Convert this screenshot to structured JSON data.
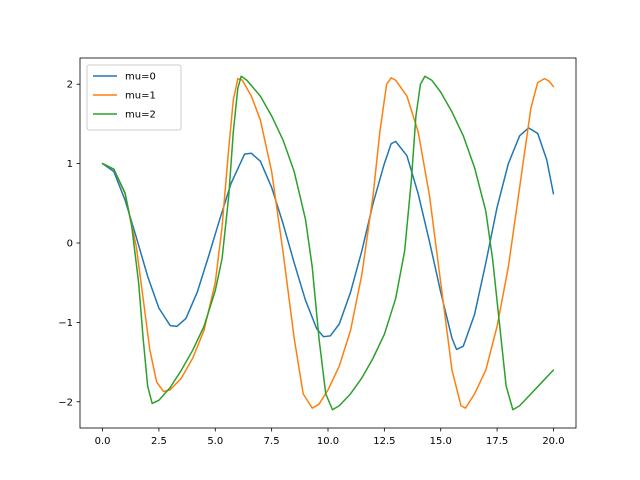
{
  "chart_data": {
    "type": "line",
    "title": "",
    "xlabel": "",
    "ylabel": "",
    "xlim": [
      -1.0,
      21.0
    ],
    "ylim": [
      -2.33,
      2.33
    ],
    "grid": false,
    "legend_placement": "top-left",
    "x_ticks": [
      0.0,
      2.5,
      5.0,
      7.5,
      10.0,
      12.5,
      15.0,
      17.5,
      20.0
    ],
    "x_tick_labels": [
      "0.0",
      "2.5",
      "5.0",
      "7.5",
      "10.0",
      "12.5",
      "15.0",
      "17.5",
      "20.0"
    ],
    "y_ticks": [
      -2,
      -1,
      0,
      1,
      2
    ],
    "y_tick_labels": [
      "−2",
      "−1",
      "0",
      "1",
      "2"
    ],
    "series": [
      {
        "name": "mu=0",
        "color": "#1f77b4",
        "points": [
          [
            0,
            1.0
          ],
          [
            0.5,
            0.9
          ],
          [
            1.0,
            0.54
          ],
          [
            1.5,
            0.07
          ],
          [
            2.0,
            -0.42
          ],
          [
            2.5,
            -0.82
          ],
          [
            3.0,
            -1.04
          ],
          [
            3.3,
            -1.05
          ],
          [
            3.7,
            -0.95
          ],
          [
            4.2,
            -0.62
          ],
          [
            4.7,
            -0.17
          ],
          [
            5.2,
            0.3
          ],
          [
            5.7,
            0.75
          ],
          [
            6.3,
            1.12
          ],
          [
            6.6,
            1.13
          ],
          [
            7.0,
            1.03
          ],
          [
            7.5,
            0.7
          ],
          [
            8.0,
            0.25
          ],
          [
            8.5,
            -0.25
          ],
          [
            9.0,
            -0.72
          ],
          [
            9.5,
            -1.08
          ],
          [
            9.8,
            -1.18
          ],
          [
            10.1,
            -1.17
          ],
          [
            10.5,
            -1.02
          ],
          [
            11.0,
            -0.62
          ],
          [
            11.5,
            -0.1
          ],
          [
            12.0,
            0.5
          ],
          [
            12.5,
            1.0
          ],
          [
            12.8,
            1.25
          ],
          [
            13.0,
            1.28
          ],
          [
            13.5,
            1.1
          ],
          [
            14.0,
            0.62
          ],
          [
            14.5,
            0.02
          ],
          [
            15.0,
            -0.62
          ],
          [
            15.5,
            -1.2
          ],
          [
            15.7,
            -1.34
          ],
          [
            16.0,
            -1.3
          ],
          [
            16.5,
            -0.9
          ],
          [
            17.0,
            -0.25
          ],
          [
            17.5,
            0.45
          ],
          [
            18.0,
            1.0
          ],
          [
            18.5,
            1.35
          ],
          [
            18.9,
            1.45
          ],
          [
            19.3,
            1.38
          ],
          [
            19.7,
            1.05
          ],
          [
            20.0,
            0.62
          ]
        ]
      },
      {
        "name": "mu=1",
        "color": "#ff7f0e",
        "points": [
          [
            0,
            1.0
          ],
          [
            0.5,
            0.93
          ],
          [
            1.0,
            0.62
          ],
          [
            1.5,
            -0.05
          ],
          [
            1.8,
            -0.7
          ],
          [
            2.1,
            -1.35
          ],
          [
            2.4,
            -1.75
          ],
          [
            2.7,
            -1.87
          ],
          [
            3.0,
            -1.85
          ],
          [
            3.5,
            -1.7
          ],
          [
            4.0,
            -1.45
          ],
          [
            4.5,
            -1.1
          ],
          [
            5.0,
            -0.5
          ],
          [
            5.3,
            0.2
          ],
          [
            5.6,
            1.2
          ],
          [
            5.8,
            1.8
          ],
          [
            6.0,
            2.07
          ],
          [
            6.2,
            2.05
          ],
          [
            6.6,
            1.85
          ],
          [
            7.0,
            1.55
          ],
          [
            7.5,
            0.9
          ],
          [
            8.0,
            -0.1
          ],
          [
            8.5,
            -1.2
          ],
          [
            8.9,
            -1.9
          ],
          [
            9.3,
            -2.08
          ],
          [
            9.6,
            -2.03
          ],
          [
            10.0,
            -1.85
          ],
          [
            10.5,
            -1.55
          ],
          [
            11.0,
            -1.1
          ],
          [
            11.5,
            -0.4
          ],
          [
            12.0,
            0.6
          ],
          [
            12.3,
            1.4
          ],
          [
            12.6,
            2.0
          ],
          [
            12.8,
            2.08
          ],
          [
            13.0,
            2.05
          ],
          [
            13.5,
            1.85
          ],
          [
            14.0,
            1.4
          ],
          [
            14.5,
            0.6
          ],
          [
            15.0,
            -0.5
          ],
          [
            15.5,
            -1.6
          ],
          [
            15.9,
            -2.05
          ],
          [
            16.1,
            -2.08
          ],
          [
            16.5,
            -1.9
          ],
          [
            17.0,
            -1.6
          ],
          [
            17.5,
            -1.05
          ],
          [
            18.0,
            -0.3
          ],
          [
            18.5,
            0.7
          ],
          [
            19.0,
            1.7
          ],
          [
            19.3,
            2.02
          ],
          [
            19.6,
            2.07
          ],
          [
            19.8,
            2.04
          ],
          [
            20.0,
            1.97
          ]
        ]
      },
      {
        "name": "mu=2",
        "color": "#2ca02c",
        "points": [
          [
            0,
            1.0
          ],
          [
            0.5,
            0.93
          ],
          [
            1.0,
            0.63
          ],
          [
            1.3,
            0.2
          ],
          [
            1.6,
            -0.5
          ],
          [
            1.8,
            -1.2
          ],
          [
            2.0,
            -1.8
          ],
          [
            2.2,
            -2.02
          ],
          [
            2.5,
            -1.98
          ],
          [
            3.0,
            -1.82
          ],
          [
            3.5,
            -1.6
          ],
          [
            4.0,
            -1.35
          ],
          [
            4.5,
            -1.05
          ],
          [
            5.0,
            -0.6
          ],
          [
            5.3,
            -0.2
          ],
          [
            5.6,
            0.6
          ],
          [
            5.8,
            1.4
          ],
          [
            6.0,
            1.95
          ],
          [
            6.15,
            2.1
          ],
          [
            6.4,
            2.05
          ],
          [
            7.0,
            1.85
          ],
          [
            7.5,
            1.6
          ],
          [
            8.0,
            1.3
          ],
          [
            8.5,
            0.9
          ],
          [
            9.0,
            0.3
          ],
          [
            9.3,
            -0.3
          ],
          [
            9.6,
            -1.2
          ],
          [
            9.9,
            -1.9
          ],
          [
            10.2,
            -2.1
          ],
          [
            10.5,
            -2.05
          ],
          [
            11.0,
            -1.9
          ],
          [
            11.5,
            -1.7
          ],
          [
            12.0,
            -1.45
          ],
          [
            12.5,
            -1.15
          ],
          [
            13.0,
            -0.7
          ],
          [
            13.4,
            -0.1
          ],
          [
            13.7,
            0.8
          ],
          [
            13.9,
            1.6
          ],
          [
            14.1,
            2.0
          ],
          [
            14.3,
            2.1
          ],
          [
            14.6,
            2.05
          ],
          [
            15.0,
            1.9
          ],
          [
            15.5,
            1.65
          ],
          [
            16.0,
            1.35
          ],
          [
            16.5,
            0.95
          ],
          [
            17.0,
            0.4
          ],
          [
            17.3,
            -0.2
          ],
          [
            17.6,
            -1.0
          ],
          [
            17.9,
            -1.8
          ],
          [
            18.2,
            -2.1
          ],
          [
            18.5,
            -2.05
          ],
          [
            19.0,
            -1.9
          ],
          [
            19.5,
            -1.75
          ],
          [
            20.0,
            -1.6
          ]
        ]
      }
    ]
  }
}
